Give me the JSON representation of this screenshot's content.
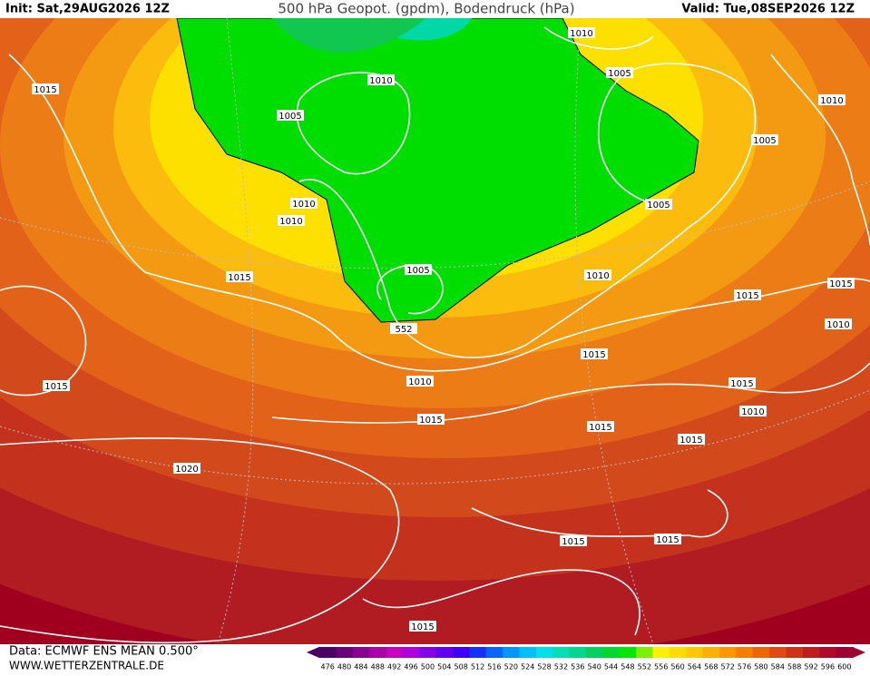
{
  "header": {
    "init": "Init: Sat,29AUG2026 12Z",
    "title": "500 hPa Geopot. (gpdm), Bodendruck (hPa)",
    "valid": "Valid: Tue,08SEP2026 12Z"
  },
  "isobar_labels": [
    "1010",
    "1005",
    "1010",
    "1005",
    "1015",
    "1010",
    "1005",
    "1010",
    "1010",
    "1005",
    "1015",
    "1005",
    "1010",
    "1015",
    "1015",
    "1010",
    "552",
    "1015",
    "1010",
    "1015",
    "1015",
    "1010",
    "1015",
    "1015",
    "1015",
    "1020",
    "1015",
    "1015",
    "1015"
  ],
  "legend": {
    "labels": [
      "476",
      "480",
      "484",
      "488",
      "492",
      "496",
      "500",
      "504",
      "508",
      "512",
      "516",
      "520",
      "524",
      "528",
      "532",
      "536",
      "540",
      "544",
      "548",
      "552",
      "556",
      "560",
      "564",
      "568",
      "572",
      "576",
      "580",
      "584",
      "588",
      "592",
      "596",
      "600"
    ],
    "colors": [
      "#4b0064",
      "#6a007a",
      "#8a0090",
      "#aa00a8",
      "#c800c0",
      "#b000e0",
      "#8800e8",
      "#6400f0",
      "#3c00f8",
      "#1432ff",
      "#0a64ff",
      "#0096ff",
      "#00c0ff",
      "#00e0e8",
      "#00e0b0",
      "#00d890",
      "#00d060",
      "#00d830",
      "#00e800",
      "#78f000",
      "#fff000",
      "#ffdc00",
      "#ffc800",
      "#ffb000",
      "#ff9600",
      "#f87c00",
      "#f06400",
      "#e04a10",
      "#d03218",
      "#c01c20",
      "#b00a28",
      "#a00030"
    ]
  },
  "footer": {
    "source": "Data: ECMWF ENS MEAN 0.500°",
    "site": "WWW.WETTERZENTRALE.DE"
  }
}
